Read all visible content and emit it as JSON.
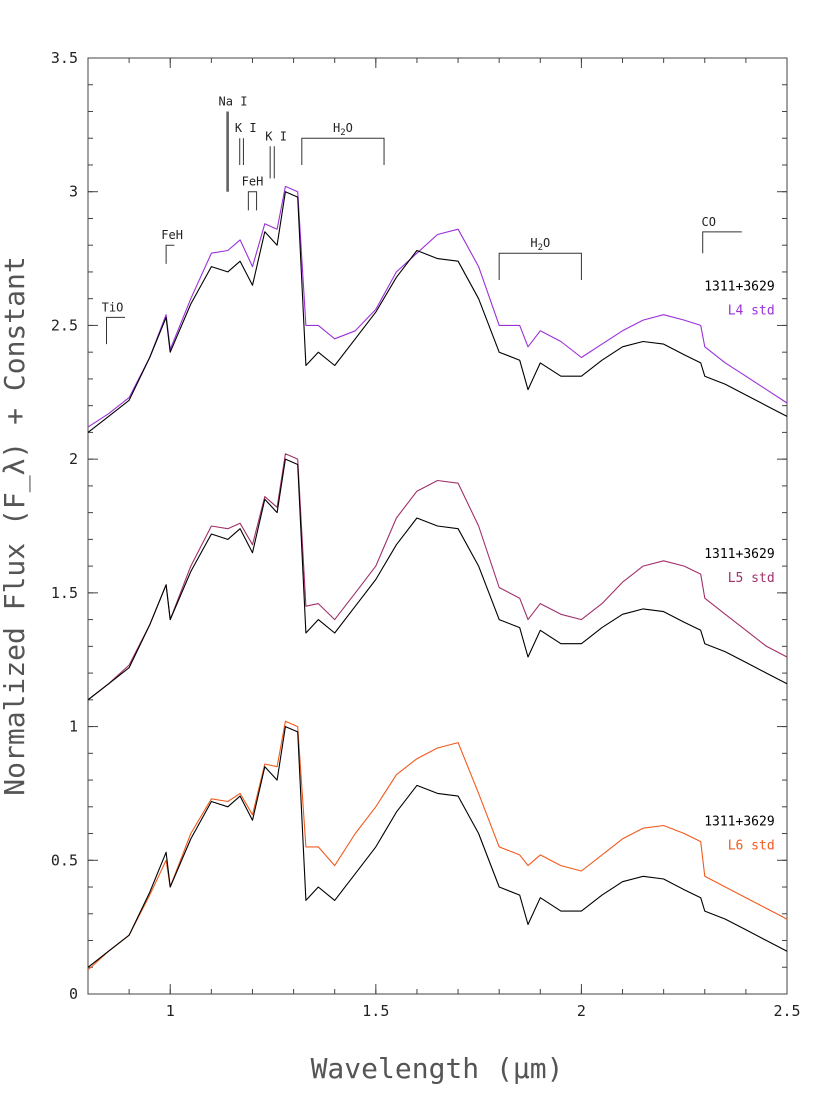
{
  "chart_data": {
    "type": "line",
    "xlabel": "Wavelength (μm)",
    "ylabel": "Normalized Flux (F_λ) + Constant",
    "xlim": [
      0.8,
      2.5
    ],
    "ylim": [
      0,
      3.5
    ],
    "x_ticks": [
      1,
      1.5,
      2,
      2.5
    ],
    "y_ticks": [
      0,
      0.5,
      1,
      1.5,
      2,
      2.5,
      3,
      3.5
    ],
    "x_tick_labels": [
      "1",
      "1.5",
      "2",
      "2.5"
    ],
    "y_tick_labels": [
      "0",
      "0.5",
      "1",
      "1.5",
      "2",
      "2.5",
      "3",
      "3.5"
    ],
    "colors": {
      "object": "#000000",
      "L4": "#9b30d9",
      "L5": "#a0306a",
      "L6": "#f05a1e"
    },
    "series": [
      {
        "name": "1311+3629",
        "offset": 2,
        "color": "#000000",
        "x": [
          0.8,
          0.85,
          0.9,
          0.95,
          0.99,
          1.0,
          1.05,
          1.1,
          1.14,
          1.17,
          1.2,
          1.23,
          1.26,
          1.28,
          1.31,
          1.33,
          1.36,
          1.4,
          1.45,
          1.5,
          1.55,
          1.6,
          1.65,
          1.7,
          1.75,
          1.8,
          1.85,
          1.87,
          1.9,
          1.95,
          2.0,
          2.05,
          2.1,
          2.15,
          2.2,
          2.25,
          2.29,
          2.3,
          2.35,
          2.4,
          2.45,
          2.5
        ],
        "y": [
          0.1,
          0.16,
          0.22,
          0.38,
          0.53,
          0.4,
          0.58,
          0.72,
          0.7,
          0.74,
          0.65,
          0.85,
          0.8,
          1.0,
          0.98,
          0.35,
          0.4,
          0.35,
          0.45,
          0.55,
          0.68,
          0.78,
          0.75,
          0.74,
          0.6,
          0.4,
          0.37,
          0.26,
          0.36,
          0.31,
          0.31,
          0.37,
          0.42,
          0.44,
          0.43,
          0.39,
          0.36,
          0.31,
          0.28,
          0.24,
          0.2,
          0.16
        ]
      },
      {
        "name": "L4 std",
        "offset": 2,
        "color": "#9b30d9",
        "x": [
          0.8,
          0.85,
          0.9,
          0.95,
          0.99,
          1.0,
          1.05,
          1.1,
          1.14,
          1.17,
          1.2,
          1.23,
          1.26,
          1.28,
          1.31,
          1.33,
          1.36,
          1.4,
          1.45,
          1.5,
          1.55,
          1.6,
          1.65,
          1.7,
          1.75,
          1.8,
          1.85,
          1.87,
          1.9,
          1.95,
          2.0,
          2.05,
          2.1,
          2.15,
          2.2,
          2.25,
          2.29,
          2.3,
          2.35,
          2.4,
          2.45,
          2.5
        ],
        "y": [
          0.12,
          0.17,
          0.23,
          0.38,
          0.54,
          0.41,
          0.6,
          0.77,
          0.78,
          0.82,
          0.72,
          0.88,
          0.86,
          1.02,
          1.0,
          0.5,
          0.5,
          0.45,
          0.48,
          0.56,
          0.7,
          0.77,
          0.84,
          0.86,
          0.72,
          0.5,
          0.5,
          0.42,
          0.48,
          0.44,
          0.38,
          0.43,
          0.48,
          0.52,
          0.54,
          0.52,
          0.5,
          0.42,
          0.36,
          0.31,
          0.26,
          0.21
        ]
      },
      {
        "name": "1311+3629",
        "offset": 1,
        "color": "#000000",
        "x": [
          0.8,
          0.85,
          0.9,
          0.95,
          0.99,
          1.0,
          1.05,
          1.1,
          1.14,
          1.17,
          1.2,
          1.23,
          1.26,
          1.28,
          1.31,
          1.33,
          1.36,
          1.4,
          1.45,
          1.5,
          1.55,
          1.6,
          1.65,
          1.7,
          1.75,
          1.8,
          1.85,
          1.87,
          1.9,
          1.95,
          2.0,
          2.05,
          2.1,
          2.15,
          2.2,
          2.25,
          2.29,
          2.3,
          2.35,
          2.4,
          2.45,
          2.5
        ],
        "y": [
          0.1,
          0.16,
          0.22,
          0.38,
          0.53,
          0.4,
          0.58,
          0.72,
          0.7,
          0.74,
          0.65,
          0.85,
          0.8,
          1.0,
          0.98,
          0.35,
          0.4,
          0.35,
          0.45,
          0.55,
          0.68,
          0.78,
          0.75,
          0.74,
          0.6,
          0.4,
          0.37,
          0.26,
          0.36,
          0.31,
          0.31,
          0.37,
          0.42,
          0.44,
          0.43,
          0.39,
          0.36,
          0.31,
          0.28,
          0.24,
          0.2,
          0.16
        ]
      },
      {
        "name": "L5 std",
        "offset": 1,
        "color": "#a0306a",
        "x": [
          0.8,
          0.85,
          0.9,
          0.95,
          0.99,
          1.0,
          1.05,
          1.1,
          1.14,
          1.17,
          1.2,
          1.23,
          1.26,
          1.28,
          1.31,
          1.33,
          1.36,
          1.4,
          1.45,
          1.5,
          1.55,
          1.6,
          1.65,
          1.7,
          1.75,
          1.8,
          1.85,
          1.87,
          1.9,
          1.95,
          2.0,
          2.05,
          2.1,
          2.15,
          2.2,
          2.25,
          2.29,
          2.3,
          2.35,
          2.4,
          2.45,
          2.5
        ],
        "y": [
          0.1,
          0.16,
          0.23,
          0.38,
          0.53,
          0.4,
          0.6,
          0.75,
          0.74,
          0.76,
          0.68,
          0.86,
          0.82,
          1.02,
          1.0,
          0.45,
          0.46,
          0.4,
          0.5,
          0.6,
          0.78,
          0.88,
          0.92,
          0.91,
          0.75,
          0.52,
          0.48,
          0.4,
          0.46,
          0.42,
          0.4,
          0.46,
          0.54,
          0.6,
          0.62,
          0.6,
          0.57,
          0.48,
          0.42,
          0.36,
          0.3,
          0.26
        ]
      },
      {
        "name": "1311+3629",
        "offset": 0,
        "color": "#000000",
        "x": [
          0.8,
          0.85,
          0.9,
          0.95,
          0.99,
          1.0,
          1.05,
          1.1,
          1.14,
          1.17,
          1.2,
          1.23,
          1.26,
          1.28,
          1.31,
          1.33,
          1.36,
          1.4,
          1.45,
          1.5,
          1.55,
          1.6,
          1.65,
          1.7,
          1.75,
          1.8,
          1.85,
          1.87,
          1.9,
          1.95,
          2.0,
          2.05,
          2.1,
          2.15,
          2.2,
          2.25,
          2.29,
          2.3,
          2.35,
          2.4,
          2.45,
          2.5
        ],
        "y": [
          0.1,
          0.16,
          0.22,
          0.38,
          0.53,
          0.4,
          0.58,
          0.72,
          0.7,
          0.74,
          0.65,
          0.85,
          0.8,
          1.0,
          0.98,
          0.35,
          0.4,
          0.35,
          0.45,
          0.55,
          0.68,
          0.78,
          0.75,
          0.74,
          0.6,
          0.4,
          0.37,
          0.26,
          0.36,
          0.31,
          0.31,
          0.37,
          0.42,
          0.44,
          0.43,
          0.39,
          0.36,
          0.31,
          0.28,
          0.24,
          0.2,
          0.16
        ]
      },
      {
        "name": "L6 std",
        "offset": 0,
        "color": "#f05a1e",
        "x": [
          0.8,
          0.85,
          0.9,
          0.95,
          0.99,
          1.0,
          1.05,
          1.1,
          1.14,
          1.17,
          1.2,
          1.23,
          1.26,
          1.28,
          1.31,
          1.33,
          1.36,
          1.4,
          1.45,
          1.5,
          1.55,
          1.6,
          1.65,
          1.7,
          1.75,
          1.8,
          1.85,
          1.87,
          1.9,
          1.95,
          2.0,
          2.05,
          2.1,
          2.15,
          2.2,
          2.25,
          2.29,
          2.3,
          2.35,
          2.4,
          2.45,
          2.5
        ],
        "y": [
          0.09,
          0.16,
          0.22,
          0.37,
          0.5,
          0.4,
          0.6,
          0.73,
          0.72,
          0.75,
          0.67,
          0.86,
          0.85,
          1.02,
          1.0,
          0.55,
          0.55,
          0.48,
          0.6,
          0.7,
          0.82,
          0.88,
          0.92,
          0.94,
          0.75,
          0.55,
          0.52,
          0.48,
          0.52,
          0.48,
          0.46,
          0.52,
          0.58,
          0.62,
          0.63,
          0.6,
          0.57,
          0.44,
          0.4,
          0.36,
          0.32,
          0.28
        ]
      }
    ],
    "object_labels": [
      {
        "text": "1311+3629",
        "x": 2.47,
        "y": 2.63,
        "color": "#000000"
      },
      {
        "text": "L4 std",
        "x": 2.47,
        "y": 2.54,
        "color": "#9b30d9"
      },
      {
        "text": "1311+3629",
        "x": 2.47,
        "y": 1.63,
        "color": "#000000"
      },
      {
        "text": "L5 std",
        "x": 2.47,
        "y": 1.54,
        "color": "#a0306a"
      },
      {
        "text": "1311+3629",
        "x": 2.47,
        "y": 0.63,
        "color": "#000000"
      },
      {
        "text": "L6 std",
        "x": 2.47,
        "y": 0.54,
        "color": "#f05a1e"
      }
    ],
    "features": [
      {
        "label": "TiO",
        "x1": 0.845,
        "x2": 0.89,
        "y_top": 2.53,
        "y_bot": 2.43,
        "kind": "bracket-left"
      },
      {
        "label": "FeH",
        "x1": 0.99,
        "x2": 1.01,
        "y_top": 2.8,
        "y_bot": 2.73,
        "kind": "bracket-left"
      },
      {
        "label": "Na I",
        "x1": 1.138,
        "x2": 1.141,
        "y_top": 3.3,
        "y_bot": 3.0,
        "kind": "double"
      },
      {
        "label": "K I",
        "x1": 1.169,
        "x2": 1.178,
        "y_top": 3.2,
        "y_bot": 3.1,
        "kind": "double"
      },
      {
        "label": "FeH",
        "x1": 1.19,
        "x2": 1.21,
        "y_top": 3.0,
        "y_bot": 2.93,
        "kind": "bracket-down"
      },
      {
        "label": "K I",
        "x1": 1.243,
        "x2": 1.253,
        "y_top": 3.17,
        "y_bot": 3.05,
        "kind": "double"
      },
      {
        "label": "H2O",
        "x1": 1.32,
        "x2": 1.52,
        "y_top": 3.2,
        "y_bot": 3.1,
        "kind": "bracket-down"
      },
      {
        "label": "H2O",
        "x1": 1.8,
        "x2": 2.0,
        "y_top": 2.77,
        "y_bot": 2.67,
        "kind": "bracket-down"
      },
      {
        "label": "CO",
        "x1": 2.295,
        "x2": 2.39,
        "y_top": 2.85,
        "y_bot": 2.77,
        "kind": "bracket-left"
      }
    ]
  }
}
